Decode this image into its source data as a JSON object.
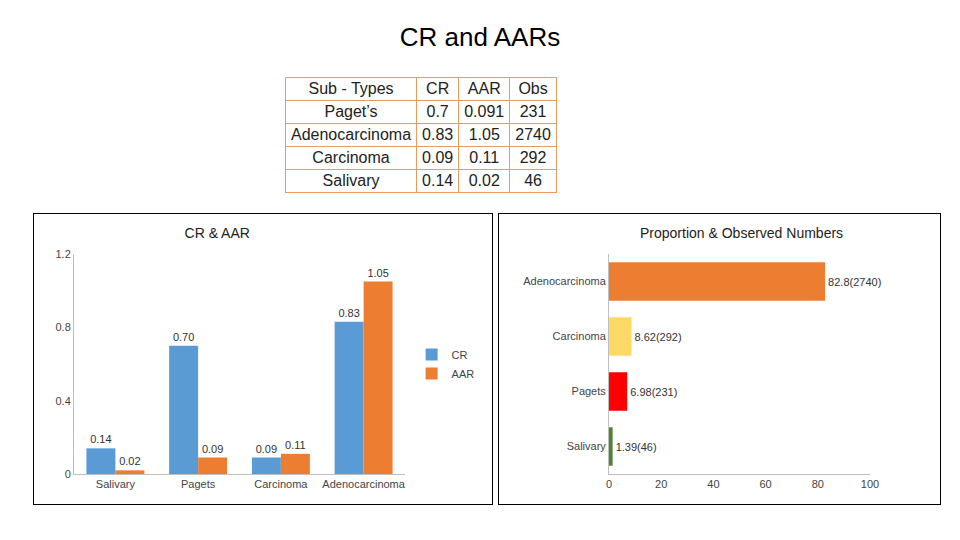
{
  "title": "CR and AARs",
  "table": {
    "header": [
      "Sub - Types",
      "CR",
      "AAR",
      "Obs"
    ],
    "rows": [
      [
        "Paget’s",
        0.7,
        0.091,
        231
      ],
      [
        "Adenocarcinoma",
        0.83,
        1.05,
        2740
      ],
      [
        "Carcinoma",
        0.09,
        0.11,
        292
      ],
      [
        "Salivary",
        0.14,
        0.02,
        46
      ]
    ]
  },
  "chart_data": [
    {
      "type": "bar",
      "title": "CR & AAR",
      "categories": [
        "Salivary",
        "Pagets",
        "Carcinoma",
        "Adenocarcinoma"
      ],
      "series": [
        {
          "name": "CR",
          "color": "#5b9bd5",
          "values": [
            0.14,
            0.7,
            0.09,
            0.83
          ],
          "value_labels": [
            "0.14",
            "0.70",
            "0.09",
            "0.83"
          ]
        },
        {
          "name": "AAR",
          "color": "#ed7d31",
          "values": [
            0.02,
            0.09,
            0.11,
            1.05
          ]
        }
      ],
      "ylim": [
        0,
        1.2
      ],
      "yticks": [
        0,
        0.4,
        0.8,
        1.2
      ],
      "grid": false,
      "legend": "right",
      "data_labels": true
    },
    {
      "type": "bar",
      "title": "Proportion & Observed Numbers",
      "orientation": "horizontal",
      "categories": [
        "Salivary",
        "Pagets",
        "Carcinoma",
        "Adenocarcinoma"
      ],
      "values": [
        1.39,
        6.98,
        8.62,
        82.8
      ],
      "value_labels": [
        "1.39(46)",
        "6.98(231)",
        "8.62(292)",
        "82.8(2740)"
      ],
      "colors": [
        "#548235",
        "#ff0000",
        "#ffd966",
        "#ed7d31"
      ],
      "xlim": [
        0,
        100
      ],
      "xticks": [
        0,
        20,
        40,
        60,
        80,
        100
      ],
      "grid": false,
      "data_labels": true
    }
  ]
}
